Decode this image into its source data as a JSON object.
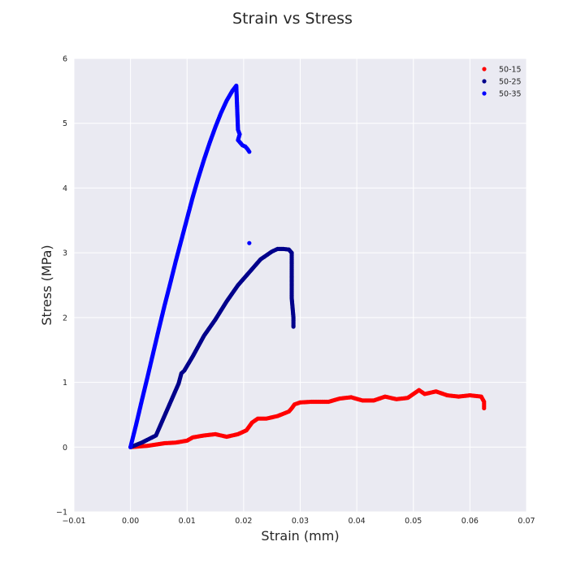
{
  "chart_data": {
    "type": "scatter",
    "title": "Strain vs Stress",
    "xlabel": "Strain (mm)",
    "ylabel": "Stress (MPa)",
    "xlim": [
      -0.01,
      0.07
    ],
    "ylim": [
      -1,
      6
    ],
    "xticks": [
      "−0.01",
      "0.00",
      "0.01",
      "0.02",
      "0.03",
      "0.04",
      "0.05",
      "0.06",
      "0.07"
    ],
    "xtick_values": [
      -0.01,
      0.0,
      0.01,
      0.02,
      0.03,
      0.04,
      0.05,
      0.06,
      0.07
    ],
    "yticks": [
      "−1",
      "0",
      "1",
      "2",
      "3",
      "4",
      "5",
      "6"
    ],
    "ytick_values": [
      -1,
      0,
      1,
      2,
      3,
      4,
      5,
      6
    ],
    "grid": true,
    "legend_position": "top-right",
    "series": [
      {
        "name": "50-15",
        "color": "#ff0000",
        "points": [
          [
            0.0,
            0.0
          ],
          [
            0.003,
            0.02
          ],
          [
            0.006,
            0.06
          ],
          [
            0.008,
            0.07
          ],
          [
            0.01,
            0.1
          ],
          [
            0.011,
            0.15
          ],
          [
            0.013,
            0.18
          ],
          [
            0.015,
            0.2
          ],
          [
            0.017,
            0.16
          ],
          [
            0.019,
            0.2
          ],
          [
            0.0205,
            0.26
          ],
          [
            0.0215,
            0.38
          ],
          [
            0.0225,
            0.44
          ],
          [
            0.024,
            0.44
          ],
          [
            0.026,
            0.48
          ],
          [
            0.028,
            0.55
          ],
          [
            0.0285,
            0.6
          ],
          [
            0.029,
            0.66
          ],
          [
            0.03,
            0.69
          ],
          [
            0.032,
            0.7
          ],
          [
            0.035,
            0.7
          ],
          [
            0.037,
            0.75
          ],
          [
            0.039,
            0.77
          ],
          [
            0.041,
            0.72
          ],
          [
            0.043,
            0.72
          ],
          [
            0.045,
            0.78
          ],
          [
            0.047,
            0.74
          ],
          [
            0.049,
            0.76
          ],
          [
            0.051,
            0.88
          ],
          [
            0.052,
            0.82
          ],
          [
            0.054,
            0.86
          ],
          [
            0.056,
            0.8
          ],
          [
            0.058,
            0.78
          ],
          [
            0.06,
            0.8
          ],
          [
            0.062,
            0.78
          ],
          [
            0.0625,
            0.7
          ],
          [
            0.0625,
            0.6
          ]
        ]
      },
      {
        "name": "50-25",
        "color": "#00008b",
        "points": [
          [
            0.0,
            0.0
          ],
          [
            0.002,
            0.07
          ],
          [
            0.0045,
            0.18
          ],
          [
            0.006,
            0.48
          ],
          [
            0.0085,
            0.98
          ],
          [
            0.009,
            1.14
          ],
          [
            0.0095,
            1.18
          ],
          [
            0.011,
            1.4
          ],
          [
            0.013,
            1.72
          ],
          [
            0.015,
            1.97
          ],
          [
            0.017,
            2.25
          ],
          [
            0.019,
            2.5
          ],
          [
            0.021,
            2.7
          ],
          [
            0.023,
            2.9
          ],
          [
            0.025,
            3.02
          ],
          [
            0.026,
            3.06
          ],
          [
            0.027,
            3.06
          ],
          [
            0.028,
            3.05
          ],
          [
            0.0285,
            3.0
          ],
          [
            0.0285,
            2.7
          ],
          [
            0.0285,
            2.3
          ],
          [
            0.0288,
            2.0
          ],
          [
            0.0288,
            1.86
          ]
        ]
      },
      {
        "name": "50-35",
        "color": "#0000ff",
        "points": [
          [
            0.0,
            0.0
          ],
          [
            0.001,
            0.35
          ],
          [
            0.002,
            0.72
          ],
          [
            0.003,
            1.08
          ],
          [
            0.004,
            1.45
          ],
          [
            0.005,
            1.82
          ],
          [
            0.006,
            2.18
          ],
          [
            0.007,
            2.52
          ],
          [
            0.008,
            2.87
          ],
          [
            0.009,
            3.2
          ],
          [
            0.01,
            3.53
          ],
          [
            0.011,
            3.86
          ],
          [
            0.012,
            4.16
          ],
          [
            0.013,
            4.44
          ],
          [
            0.014,
            4.7
          ],
          [
            0.015,
            4.94
          ],
          [
            0.016,
            5.16
          ],
          [
            0.017,
            5.35
          ],
          [
            0.018,
            5.5
          ],
          [
            0.0187,
            5.58
          ],
          [
            0.019,
            4.9
          ],
          [
            0.0193,
            4.83
          ],
          [
            0.019,
            4.74
          ],
          [
            0.0198,
            4.66
          ],
          [
            0.0203,
            4.64
          ],
          [
            0.0207,
            4.6
          ],
          [
            0.021,
            4.56
          ],
          [
            0.021,
            3.15
          ]
        ]
      }
    ]
  }
}
